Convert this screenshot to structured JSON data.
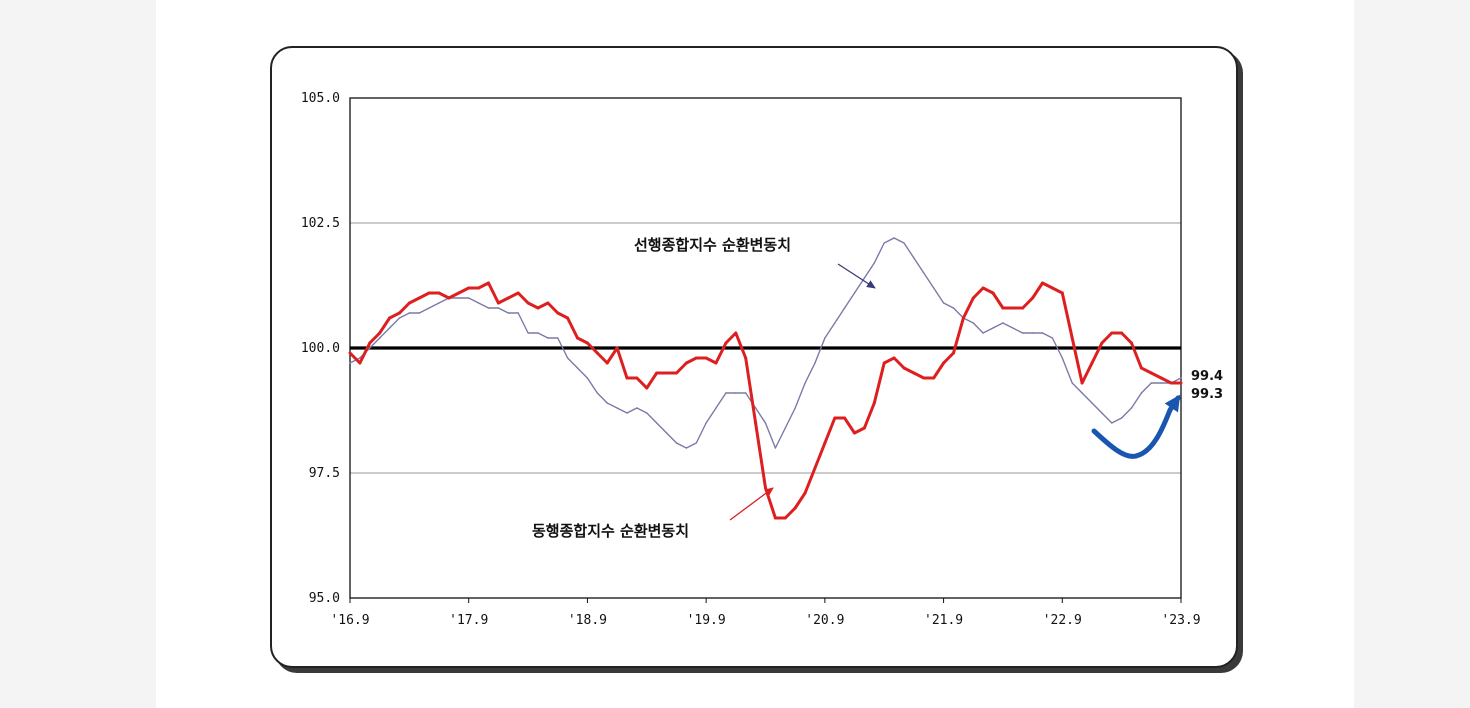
{
  "chart_data": {
    "type": "line",
    "ylim": [
      95.0,
      105.0
    ],
    "y_ticks": [
      "105.0",
      "102.5",
      "100.0",
      "97.5",
      "95.0"
    ],
    "x_ticks": [
      "'16.9",
      "'17.9",
      "'18.9",
      "'19.9",
      "'20.9",
      "'21.9",
      "'22.9",
      "'23.9"
    ],
    "x_range": [
      "2016-09",
      "2023-09"
    ],
    "grid": true,
    "baseline": 100.0,
    "series": [
      {
        "name": "선행종합지수 순환변동치",
        "color": "#7a7aa8",
        "x": [
          "2016-09",
          "2016-10",
          "2016-11",
          "2016-12",
          "2017-01",
          "2017-02",
          "2017-03",
          "2017-04",
          "2017-05",
          "2017-06",
          "2017-07",
          "2017-08",
          "2017-09",
          "2017-10",
          "2017-11",
          "2017-12",
          "2018-01",
          "2018-02",
          "2018-03",
          "2018-04",
          "2018-05",
          "2018-06",
          "2018-07",
          "2018-08",
          "2018-09",
          "2018-10",
          "2018-11",
          "2018-12",
          "2019-01",
          "2019-02",
          "2019-03",
          "2019-04",
          "2019-05",
          "2019-06",
          "2019-07",
          "2019-08",
          "2019-09",
          "2019-10",
          "2019-11",
          "2019-12",
          "2020-01",
          "2020-02",
          "2020-03",
          "2020-04",
          "2020-05",
          "2020-06",
          "2020-07",
          "2020-08",
          "2020-09",
          "2020-10",
          "2020-11",
          "2020-12",
          "2021-01",
          "2021-02",
          "2021-03",
          "2021-04",
          "2021-05",
          "2021-06",
          "2021-07",
          "2021-08",
          "2021-09",
          "2021-10",
          "2021-11",
          "2021-12",
          "2022-01",
          "2022-02",
          "2022-03",
          "2022-04",
          "2022-05",
          "2022-06",
          "2022-07",
          "2022-08",
          "2022-09",
          "2022-10",
          "2022-11",
          "2022-12",
          "2023-01",
          "2023-02",
          "2023-03",
          "2023-04",
          "2023-05",
          "2023-06",
          "2023-07",
          "2023-08",
          "2023-09"
        ],
        "values": [
          99.7,
          99.8,
          100.0,
          100.2,
          100.4,
          100.6,
          100.7,
          100.7,
          100.8,
          100.9,
          101.0,
          101.0,
          101.0,
          100.9,
          100.8,
          100.8,
          100.7,
          100.7,
          100.3,
          100.3,
          100.2,
          100.2,
          99.8,
          99.6,
          99.4,
          99.1,
          98.9,
          98.8,
          98.7,
          98.8,
          98.7,
          98.5,
          98.3,
          98.1,
          98.0,
          98.1,
          98.5,
          98.8,
          99.1,
          99.1,
          99.1,
          98.8,
          98.5,
          98.0,
          98.4,
          98.8,
          99.3,
          99.7,
          100.2,
          100.5,
          100.8,
          101.1,
          101.4,
          101.7,
          102.1,
          102.2,
          102.1,
          101.8,
          101.5,
          101.2,
          100.9,
          100.8,
          100.6,
          100.5,
          100.3,
          100.4,
          100.5,
          100.4,
          100.3,
          100.3,
          100.3,
          100.2,
          99.8,
          99.3,
          99.1,
          98.9,
          98.7,
          98.5,
          98.6,
          98.8,
          99.1,
          99.3,
          99.3,
          99.3,
          99.4
        ]
      },
      {
        "name": "동행종합지수 순환변동치",
        "color": "#dd1f1f",
        "x": [
          "2016-09",
          "2016-10",
          "2016-11",
          "2016-12",
          "2017-01",
          "2017-02",
          "2017-03",
          "2017-04",
          "2017-05",
          "2017-06",
          "2017-07",
          "2017-08",
          "2017-09",
          "2017-10",
          "2017-11",
          "2017-12",
          "2018-01",
          "2018-02",
          "2018-03",
          "2018-04",
          "2018-05",
          "2018-06",
          "2018-07",
          "2018-08",
          "2018-09",
          "2018-10",
          "2018-11",
          "2018-12",
          "2019-01",
          "2019-02",
          "2019-03",
          "2019-04",
          "2019-05",
          "2019-06",
          "2019-07",
          "2019-08",
          "2019-09",
          "2019-10",
          "2019-11",
          "2019-12",
          "2020-01",
          "2020-02",
          "2020-03",
          "2020-04",
          "2020-05",
          "2020-06",
          "2020-07",
          "2020-08",
          "2020-09",
          "2020-10",
          "2020-11",
          "2020-12",
          "2021-01",
          "2021-02",
          "2021-03",
          "2021-04",
          "2021-05",
          "2021-06",
          "2021-07",
          "2021-08",
          "2021-09",
          "2021-10",
          "2021-11",
          "2021-12",
          "2022-01",
          "2022-02",
          "2022-03",
          "2022-04",
          "2022-05",
          "2022-06",
          "2022-07",
          "2022-08",
          "2022-09",
          "2022-10",
          "2022-11",
          "2022-12",
          "2023-01",
          "2023-02",
          "2023-03",
          "2023-04",
          "2023-05",
          "2023-06",
          "2023-07",
          "2023-08",
          "2023-09"
        ],
        "values": [
          99.9,
          99.7,
          100.1,
          100.3,
          100.6,
          100.7,
          100.9,
          101.0,
          101.1,
          101.1,
          101.0,
          101.1,
          101.2,
          101.2,
          101.3,
          100.9,
          101.0,
          101.1,
          100.9,
          100.8,
          100.9,
          100.7,
          100.6,
          100.2,
          100.1,
          99.9,
          99.7,
          100.0,
          99.4,
          99.4,
          99.2,
          99.5,
          99.5,
          99.5,
          99.7,
          99.8,
          99.8,
          99.7,
          100.1,
          100.3,
          99.8,
          98.5,
          97.2,
          96.6,
          96.6,
          96.8,
          97.1,
          97.6,
          98.1,
          98.6,
          98.6,
          98.3,
          98.4,
          98.9,
          99.7,
          99.8,
          99.6,
          99.5,
          99.4,
          99.4,
          99.7,
          99.9,
          100.6,
          101.0,
          101.2,
          101.1,
          100.8,
          100.8,
          100.8,
          101.0,
          101.3,
          101.2,
          101.1,
          100.2,
          99.3,
          99.7,
          100.1,
          100.3,
          100.3,
          100.1,
          99.6,
          99.5,
          99.4,
          99.3,
          99.3
        ]
      }
    ],
    "annotations": [
      {
        "text": "선행종합지수 순환변동치",
        "points_to": "선행종합지수 순환변동치"
      },
      {
        "text": "동행종합지수 순환변동치",
        "points_to": "동행종합지수 순환변동치"
      }
    ],
    "end_labels": [
      "99.4",
      "99.3"
    ],
    "highlight_arrow_color": "#1a56b0"
  }
}
